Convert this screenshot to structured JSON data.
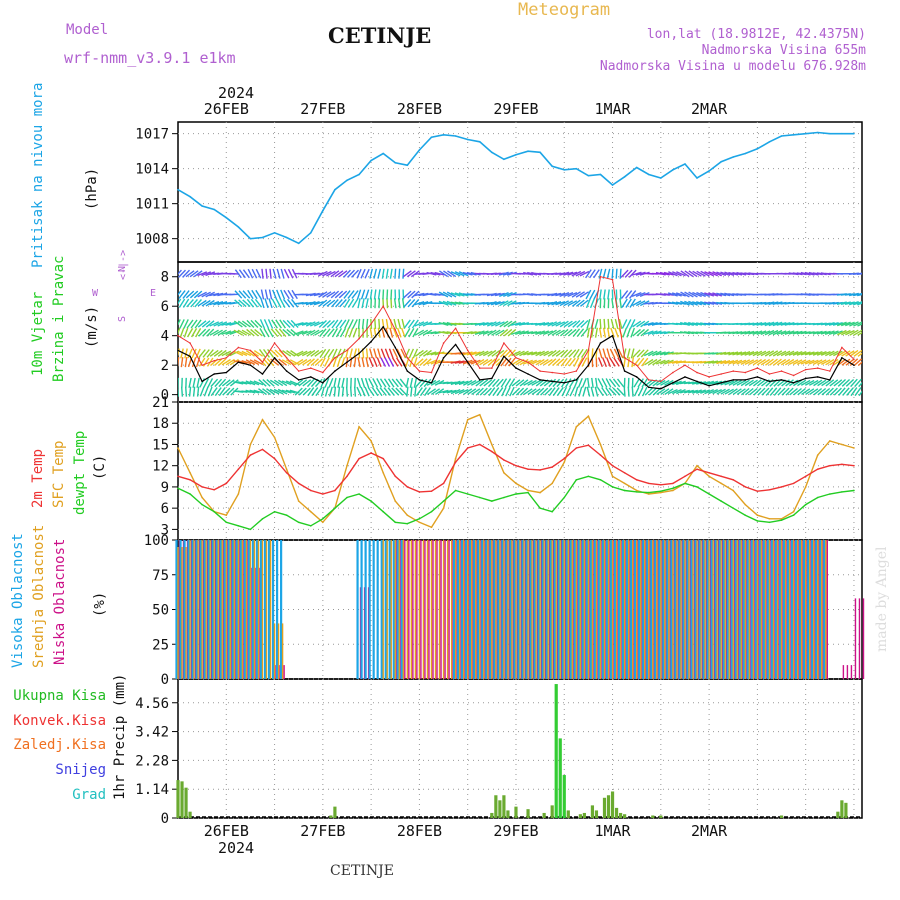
{
  "header": {
    "model_label": "Model",
    "model_name": "wrf-nmm_v3.9.1 e1km",
    "station": "CETINJE",
    "meteogram_label": "Meteogram",
    "lonlat": "lon,lat (18.9812E, 42.4375N)",
    "elevation": "Nadmorska Visina 655m",
    "model_elevation": "Nadmorska Visina u modelu 676.928m",
    "year": "2024",
    "footer_station": "CETINJE",
    "credit": "made by Angel"
  },
  "colors": {
    "pressure": "#1ca5e6",
    "wind_speed": "#000000",
    "gust": "#ee3333",
    "temp": "#ee3333",
    "sfc_temp": "#e0a020",
    "dewpoint": "#22cc22",
    "cloud_high": "#1ca5e6",
    "cloud_mid": "#e0a020",
    "cloud_low": "#cc1188",
    "precip": "#6aaa30",
    "precip_big": "#33cc33",
    "purple": "#b060d0"
  },
  "chart_data": [
    {
      "type": "line",
      "id": "pressure",
      "ylabel_left": "Pritisak na nivou mora",
      "unit": "(hPa)",
      "yticks": [
        "1008",
        "1011",
        "1014",
        "1017"
      ],
      "ylim": [
        1006,
        1018
      ],
      "x_hours": [
        0,
        3,
        6,
        9,
        12,
        15,
        18,
        21,
        24,
        27,
        30,
        33,
        36,
        39,
        42,
        45,
        48,
        51,
        54,
        57,
        60,
        63,
        66,
        69,
        72,
        75,
        78,
        81,
        84,
        87,
        90,
        93,
        96,
        99,
        102,
        105,
        108,
        111,
        114,
        117,
        120,
        123,
        126,
        129,
        132,
        135,
        138,
        141,
        144,
        147,
        150,
        153,
        156,
        159,
        162,
        165,
        168
      ],
      "values": [
        1012.2,
        1011.6,
        1010.8,
        1010.5,
        1009.8,
        1009.0,
        1008.0,
        1008.1,
        1008.5,
        1008.1,
        1007.6,
        1008.5,
        1010.4,
        1012.2,
        1013.0,
        1013.5,
        1014.7,
        1015.3,
        1014.5,
        1014.3,
        1015.6,
        1016.7,
        1016.9,
        1016.8,
        1016.5,
        1016.3,
        1015.4,
        1014.8,
        1015.2,
        1015.5,
        1015.4,
        1014.2,
        1013.9,
        1014.0,
        1013.4,
        1013.5,
        1012.6,
        1013.3,
        1014.1,
        1013.5,
        1013.2,
        1013.9,
        1014.4,
        1013.2,
        1013.8,
        1014.6,
        1015.0,
        1015.3,
        1015.7,
        1016.3,
        1016.8,
        1016.9,
        1017.0,
        1017.1,
        1017.0,
        1017.0,
        1017.0
      ]
    },
    {
      "type": "line",
      "id": "wind",
      "ylabel_left": "10m Vjetar",
      "ylabel_left2": "Brzina i Pravac",
      "unit": "(m/s)",
      "compass": [
        "N",
        "W",
        "<-|->",
        "E",
        "S"
      ],
      "yticks": [
        "0",
        "2",
        "4",
        "6",
        "8"
      ],
      "ylim": [
        -0.5,
        9
      ],
      "x_hours": [
        0,
        3,
        6,
        9,
        12,
        15,
        18,
        21,
        24,
        27,
        30,
        33,
        36,
        39,
        42,
        45,
        48,
        51,
        54,
        57,
        60,
        63,
        66,
        69,
        72,
        75,
        78,
        81,
        84,
        87,
        90,
        93,
        96,
        99,
        102,
        105,
        108,
        111,
        114,
        117,
        120,
        123,
        126,
        129,
        132,
        135,
        138,
        141,
        144,
        147,
        150,
        153,
        156,
        159,
        162,
        165,
        168
      ],
      "speed": [
        3.0,
        2.6,
        0.9,
        1.4,
        1.5,
        2.2,
        2.0,
        1.4,
        2.5,
        1.6,
        1.0,
        1.2,
        0.8,
        1.6,
        2.2,
        2.8,
        3.6,
        4.6,
        3.2,
        1.6,
        1.0,
        0.8,
        2.5,
        3.4,
        2.2,
        1.0,
        1.1,
        2.6,
        1.8,
        1.4,
        1.0,
        0.9,
        0.8,
        1.0,
        2.0,
        3.5,
        4.0,
        1.6,
        1.2,
        0.5,
        0.4,
        0.8,
        1.2,
        0.9,
        0.6,
        0.8,
        1.0,
        1.0,
        1.2,
        0.9,
        1.0,
        0.8,
        1.1,
        1.2,
        1.0,
        2.5,
        2.0
      ],
      "gust": [
        4.0,
        3.5,
        2.0,
        2.3,
        2.5,
        3.2,
        3.0,
        2.2,
        3.5,
        2.5,
        1.6,
        1.8,
        1.5,
        2.5,
        3.0,
        3.8,
        4.8,
        6.0,
        4.4,
        2.5,
        1.6,
        1.5,
        3.5,
        4.5,
        3.0,
        1.8,
        1.8,
        3.5,
        2.5,
        2.2,
        1.6,
        1.5,
        1.4,
        1.6,
        3.0,
        8.0,
        7.8,
        2.5,
        2.0,
        1.0,
        0.9,
        1.5,
        2.0,
        1.5,
        1.2,
        1.4,
        1.6,
        1.5,
        1.8,
        1.4,
        1.6,
        1.3,
        1.7,
        1.8,
        1.6,
        3.2,
        2.4
      ],
      "direction_deg": [
        200,
        210,
        225,
        240,
        250,
        300,
        310,
        330,
        320,
        310,
        250,
        240,
        220,
        210,
        200,
        180,
        170,
        165,
        160,
        210,
        240,
        260,
        280,
        270,
        260,
        250,
        240,
        230,
        250,
        260,
        250,
        240,
        230,
        220,
        190,
        170,
        160,
        200,
        230,
        250,
        260,
        270,
        280,
        275,
        270,
        265,
        260,
        255,
        250,
        245,
        250,
        255,
        260,
        255,
        250,
        245,
        240
      ]
    },
    {
      "type": "line",
      "id": "temperature",
      "ylabel_left": "2m Temp",
      "ylabel_left2": "SFC Temp",
      "ylabel_left3": "dewpt Temp",
      "unit": "(C)",
      "yticks": [
        "3",
        "6",
        "9",
        "12",
        "15",
        "18",
        "21"
      ],
      "ylim": [
        1.5,
        21
      ],
      "x_hours": [
        0,
        3,
        6,
        9,
        12,
        15,
        18,
        21,
        24,
        27,
        30,
        33,
        36,
        39,
        42,
        45,
        48,
        51,
        54,
        57,
        60,
        63,
        66,
        69,
        72,
        75,
        78,
        81,
        84,
        87,
        90,
        93,
        96,
        99,
        102,
        105,
        108,
        111,
        114,
        117,
        120,
        123,
        126,
        129,
        132,
        135,
        138,
        141,
        144,
        147,
        150,
        153,
        156,
        159,
        162,
        165,
        168
      ],
      "series": [
        {
          "name": "2m Temp",
          "values": [
            10.5,
            10.0,
            9.0,
            8.6,
            9.5,
            11.5,
            13.5,
            14.3,
            13.0,
            11.0,
            9.5,
            8.5,
            8.0,
            8.5,
            10.5,
            13.0,
            13.8,
            13.0,
            10.5,
            9.0,
            8.3,
            8.4,
            9.5,
            12.5,
            14.5,
            15.0,
            14.0,
            12.8,
            12.0,
            11.5,
            11.4,
            11.8,
            13.0,
            14.5,
            14.9,
            13.5,
            12.0,
            11.0,
            10.0,
            9.5,
            9.3,
            9.5,
            10.5,
            11.5,
            11.0,
            10.5,
            10.0,
            9.0,
            8.4,
            8.6,
            9.0,
            9.5,
            10.5,
            11.5,
            12.0,
            12.2,
            12.0
          ]
        },
        {
          "name": "SFC Temp",
          "values": [
            14.5,
            11.0,
            7.5,
            5.5,
            5.0,
            8.0,
            15.0,
            18.5,
            16.0,
            11.5,
            7.0,
            5.5,
            4.0,
            6.0,
            12.0,
            17.5,
            15.5,
            11.0,
            7.0,
            5.0,
            4.0,
            3.3,
            6.0,
            13.0,
            18.5,
            19.2,
            15.0,
            11.0,
            9.5,
            8.5,
            8.2,
            9.5,
            12.5,
            17.5,
            19.0,
            15.0,
            10.5,
            9.5,
            8.5,
            8.0,
            8.2,
            8.5,
            9.5,
            12.0,
            10.5,
            9.5,
            8.5,
            6.5,
            5.0,
            4.5,
            4.5,
            5.5,
            9.0,
            13.5,
            15.5,
            15.0,
            14.5
          ]
        },
        {
          "name": "dewpt Temp",
          "values": [
            8.8,
            8.0,
            6.5,
            5.5,
            4.0,
            3.5,
            3.0,
            4.5,
            5.5,
            5.0,
            4.0,
            3.5,
            4.5,
            6.0,
            7.5,
            8.0,
            7.0,
            5.5,
            4.0,
            3.8,
            4.5,
            5.5,
            7.0,
            8.5,
            8.0,
            7.5,
            7.0,
            7.5,
            8.0,
            8.2,
            6.0,
            5.5,
            7.5,
            10.0,
            10.5,
            10.0,
            9.0,
            8.5,
            8.3,
            8.2,
            8.4,
            8.8,
            9.5,
            9.0,
            8.0,
            7.0,
            6.0,
            5.0,
            4.2,
            4.0,
            4.3,
            5.0,
            6.5,
            7.5,
            8.0,
            8.3,
            8.5
          ]
        }
      ]
    },
    {
      "type": "bar",
      "id": "cloud",
      "ylabel_left": "Visoka Oblacnost",
      "ylabel_left2": "Srednja Oblacnost",
      "ylabel_left3": "Niska Oblacnost",
      "unit": "(%)",
      "yticks": [
        "0",
        "25",
        "50",
        "75",
        "100"
      ],
      "ylim": [
        0,
        100
      ],
      "x_hours": [
        0,
        3,
        6,
        9,
        12,
        15,
        18,
        21,
        24,
        27,
        30,
        33,
        36,
        39,
        42,
        45,
        48,
        51,
        54,
        57,
        60,
        63,
        66,
        69,
        72,
        75,
        78,
        81,
        84,
        87,
        90,
        93,
        96,
        99,
        102,
        105,
        108,
        111,
        114,
        117,
        120,
        123,
        126,
        129,
        132,
        135,
        138,
        141,
        144,
        147,
        150,
        153,
        156,
        159,
        162,
        165,
        168
      ],
      "series": [
        {
          "name": "Visoka Oblacnost",
          "values": [
            100,
            100,
            100,
            100,
            100,
            100,
            100,
            100,
            100,
            0,
            0,
            0,
            0,
            0,
            0,
            100,
            100,
            100,
            100,
            0,
            0,
            0,
            0,
            100,
            100,
            100,
            100,
            100,
            100,
            100,
            100,
            100,
            100,
            100,
            100,
            100,
            100,
            100,
            100,
            100,
            100,
            100,
            100,
            100,
            100,
            100,
            100,
            100,
            100,
            100,
            100,
            100,
            100,
            100,
            0,
            0,
            0
          ]
        },
        {
          "name": "Srednja Oblacnost",
          "values": [
            95,
            100,
            100,
            100,
            100,
            100,
            100,
            100,
            40,
            0,
            0,
            0,
            0,
            0,
            0,
            0,
            0,
            100,
            100,
            100,
            100,
            100,
            100,
            100,
            100,
            100,
            100,
            100,
            100,
            100,
            100,
            100,
            100,
            100,
            100,
            100,
            100,
            100,
            100,
            100,
            100,
            100,
            100,
            100,
            100,
            100,
            100,
            100,
            100,
            100,
            100,
            100,
            100,
            100,
            0,
            0,
            0
          ]
        },
        {
          "name": "Niska Oblacnost",
          "values": [
            100,
            100,
            100,
            100,
            100,
            100,
            80,
            0,
            10,
            0,
            0,
            0,
            0,
            0,
            0,
            66,
            0,
            0,
            100,
            100,
            100,
            100,
            100,
            100,
            100,
            100,
            100,
            100,
            100,
            100,
            100,
            100,
            100,
            100,
            100,
            100,
            100,
            100,
            100,
            100,
            100,
            100,
            100,
            100,
            100,
            100,
            100,
            100,
            100,
            100,
            100,
            100,
            100,
            100,
            0,
            10,
            58
          ]
        }
      ]
    },
    {
      "type": "bar",
      "id": "precip",
      "legend": [
        "Ukupna Kisa",
        "Konvek.Kisa",
        "Zaledj.Kisa",
        "Snijeg",
        "Grad"
      ],
      "ylabel": "1hr Precip (mm)",
      "yticks": [
        "0",
        "1.14",
        "2.28",
        "3.42",
        "4.56"
      ],
      "ylim": [
        0,
        5.5
      ],
      "bars": [
        {
          "h": 0,
          "v": 1.5
        },
        {
          "h": 1,
          "v": 1.45
        },
        {
          "h": 2,
          "v": 1.2
        },
        {
          "h": 3,
          "v": 0.25
        },
        {
          "h": 38,
          "v": 0.1
        },
        {
          "h": 39,
          "v": 0.45
        },
        {
          "h": 78,
          "v": 0.2
        },
        {
          "h": 79,
          "v": 0.9
        },
        {
          "h": 80,
          "v": 0.7
        },
        {
          "h": 81,
          "v": 0.9
        },
        {
          "h": 82,
          "v": 0.3
        },
        {
          "h": 84,
          "v": 0.45
        },
        {
          "h": 87,
          "v": 0.35
        },
        {
          "h": 91,
          "v": 0.2
        },
        {
          "h": 93,
          "v": 0.5
        },
        {
          "h": 94,
          "v": 5.3
        },
        {
          "h": 95,
          "v": 3.15
        },
        {
          "h": 96,
          "v": 1.7
        },
        {
          "h": 97,
          "v": 0.3
        },
        {
          "h": 100,
          "v": 0.15
        },
        {
          "h": 101,
          "v": 0.2
        },
        {
          "h": 103,
          "v": 0.5
        },
        {
          "h": 104,
          "v": 0.3
        },
        {
          "h": 106,
          "v": 0.8
        },
        {
          "h": 107,
          "v": 0.9
        },
        {
          "h": 108,
          "v": 1.05
        },
        {
          "h": 109,
          "v": 0.4
        },
        {
          "h": 110,
          "v": 0.2
        },
        {
          "h": 111,
          "v": 0.15
        },
        {
          "h": 118,
          "v": 0.1
        },
        {
          "h": 120,
          "v": 0.1
        },
        {
          "h": 150,
          "v": 0.1
        },
        {
          "h": 164,
          "v": 0.25
        },
        {
          "h": 165,
          "v": 0.7
        },
        {
          "h": 166,
          "v": 0.6
        }
      ]
    }
  ],
  "xaxis": {
    "day_labels": [
      "26FEB",
      "27FEB",
      "28FEB",
      "29FEB",
      "1MAR",
      "2MAR"
    ],
    "year": "2024"
  }
}
